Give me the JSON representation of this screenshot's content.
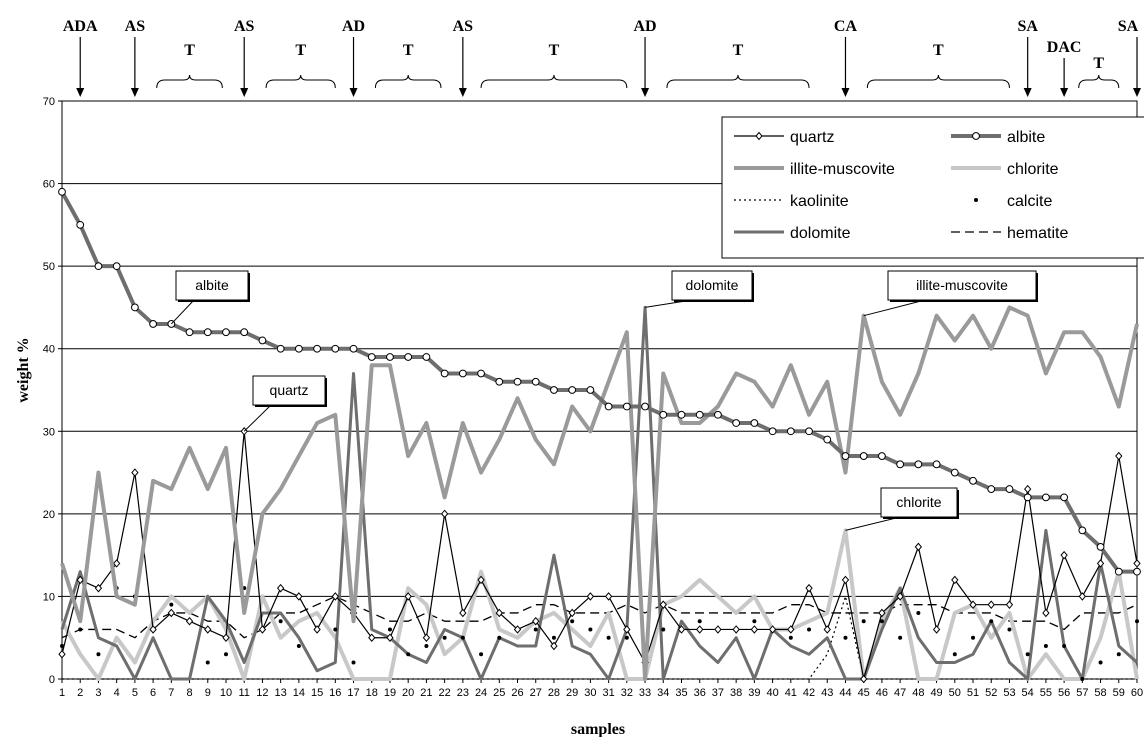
{
  "chart_data": {
    "type": "line",
    "xlabel": "samples",
    "ylabel": "weight %",
    "xlim": [
      1,
      60
    ],
    "ylim": [
      0,
      70
    ],
    "y_ticks": [
      0,
      10,
      20,
      30,
      40,
      50,
      60,
      70
    ],
    "grid": "horizontal",
    "legend_position": "top-right",
    "x": [
      1,
      2,
      3,
      4,
      5,
      6,
      7,
      8,
      9,
      10,
      11,
      12,
      13,
      14,
      15,
      16,
      17,
      18,
      19,
      20,
      21,
      22,
      23,
      24,
      25,
      26,
      27,
      28,
      29,
      30,
      31,
      32,
      33,
      34,
      35,
      36,
      37,
      38,
      39,
      40,
      41,
      42,
      43,
      44,
      45,
      46,
      47,
      48,
      49,
      50,
      51,
      52,
      53,
      54,
      55,
      56,
      57,
      58,
      59,
      60
    ],
    "series": [
      {
        "name": "quartz",
        "color": "#000000",
        "values": [
          3,
          12,
          11,
          14,
          25,
          6,
          8,
          7,
          6,
          5,
          30,
          6,
          11,
          10,
          6,
          10,
          8,
          5,
          5,
          10,
          5,
          20,
          8,
          12,
          8,
          6,
          7,
          4,
          8,
          10,
          10,
          6,
          2,
          9,
          6,
          6,
          6,
          6,
          6,
          6,
          6,
          11,
          6,
          12,
          0,
          8,
          10,
          16,
          6,
          12,
          9,
          9,
          9,
          23,
          8,
          15,
          10,
          14,
          27,
          14
        ]
      },
      {
        "name": "albite",
        "color": "#6e6e6e",
        "values": [
          59,
          55,
          50,
          50,
          45,
          43,
          43,
          42,
          42,
          42,
          42,
          41,
          40,
          40,
          40,
          40,
          40,
          39,
          39,
          39,
          39,
          37,
          37,
          37,
          36,
          36,
          36,
          35,
          35,
          35,
          33,
          33,
          33,
          32,
          32,
          32,
          32,
          31,
          31,
          30,
          30,
          30,
          29,
          27,
          27,
          27,
          26,
          26,
          26,
          25,
          24,
          23,
          23,
          22,
          22,
          22,
          18,
          16,
          13,
          13
        ]
      },
      {
        "name": "illite-muscovite",
        "color": "#9a9a9a",
        "values": [
          14,
          7,
          25,
          10,
          9,
          24,
          23,
          28,
          23,
          28,
          8,
          20,
          23,
          27,
          31,
          32,
          7,
          38,
          38,
          27,
          31,
          22,
          31,
          25,
          29,
          34,
          29,
          26,
          33,
          30,
          36,
          42,
          0,
          37,
          31,
          31,
          33,
          37,
          36,
          33,
          38,
          32,
          36,
          25,
          44,
          36,
          32,
          37,
          44,
          41,
          44,
          40,
          45,
          44,
          37,
          42,
          42,
          39,
          33,
          43
        ]
      },
      {
        "name": "chlorite",
        "color": "#c8c8c8",
        "values": [
          7,
          3,
          0,
          5,
          2,
          7,
          10,
          8,
          10,
          6,
          0,
          10,
          5,
          7,
          8,
          5,
          0,
          0,
          0,
          11,
          9,
          3,
          5,
          13,
          6,
          5,
          7,
          8,
          6,
          4,
          8,
          0,
          0,
          9,
          10,
          12,
          10,
          8,
          10,
          6,
          6,
          7,
          8,
          18,
          0,
          7,
          11,
          0,
          0,
          8,
          9,
          5,
          8,
          0,
          3,
          0,
          0,
          5,
          13,
          0
        ]
      },
      {
        "name": "kaolinite",
        "color": "#000000",
        "values": [
          0,
          0,
          0,
          0,
          0,
          0,
          0,
          0,
          0,
          0,
          0,
          0,
          0,
          0,
          0,
          0,
          0,
          0,
          0,
          0,
          0,
          0,
          0,
          0,
          0,
          0,
          0,
          0,
          0,
          0,
          0,
          0,
          0,
          0,
          0,
          0,
          0,
          0,
          0,
          0,
          0,
          0,
          3,
          10,
          0,
          0,
          0,
          0,
          0,
          0,
          0,
          0,
          0,
          0,
          0,
          0,
          0,
          0,
          0,
          0
        ]
      },
      {
        "name": "calcite",
        "color": "#000000",
        "values": [
          4,
          6,
          3,
          11,
          10,
          6,
          9,
          7,
          2,
          3,
          11,
          6,
          7,
          4,
          6,
          6,
          2,
          5,
          6,
          3,
          4,
          5,
          5,
          3,
          5,
          6,
          6,
          5,
          7,
          6,
          5,
          5,
          4,
          6,
          6,
          7,
          6,
          6,
          7,
          6,
          5,
          6,
          6,
          5,
          7,
          7,
          5,
          8,
          6,
          3,
          5,
          7,
          6,
          3,
          4,
          4,
          0,
          2,
          3,
          7
        ]
      },
      {
        "name": "dolomite",
        "color": "#6e6e6e",
        "values": [
          6,
          13,
          5,
          4,
          0,
          5,
          0,
          0,
          10,
          7,
          2,
          8,
          8,
          5,
          1,
          2,
          37,
          6,
          5,
          3,
          2,
          6,
          5,
          0,
          5,
          4,
          4,
          15,
          4,
          3,
          0,
          6,
          45,
          0,
          7,
          4,
          2,
          5,
          0,
          6,
          4,
          3,
          5,
          0,
          0,
          6,
          11,
          5,
          2,
          2,
          3,
          7,
          2,
          0,
          18,
          4,
          0,
          14,
          4,
          2
        ]
      },
      {
        "name": "hematite",
        "color": "#000000",
        "values": [
          5,
          6,
          6,
          6,
          5,
          7,
          8,
          8,
          7,
          7,
          5,
          6,
          8,
          8,
          9,
          10,
          9,
          8,
          7,
          7,
          8,
          7,
          7,
          7,
          8,
          8,
          9,
          9,
          8,
          8,
          8,
          9,
          8,
          9,
          8,
          8,
          8,
          8,
          8,
          8,
          9,
          9,
          8,
          8,
          8,
          8,
          9,
          9,
          9,
          8,
          8,
          8,
          7,
          7,
          7,
          6,
          8,
          8,
          8,
          9
        ]
      }
    ],
    "top_labels": [
      {
        "text": "ADA",
        "at": 2,
        "arrow": true
      },
      {
        "text": "AS",
        "at": 5,
        "arrow": true
      },
      {
        "text": "T",
        "from": 6.2,
        "to": 9.8,
        "arrow": false
      },
      {
        "text": "AS",
        "at": 11,
        "arrow": true
      },
      {
        "text": "T",
        "from": 12.2,
        "to": 16,
        "arrow": false
      },
      {
        "text": "AD",
        "at": 17,
        "arrow": true
      },
      {
        "text": "T",
        "from": 18.2,
        "to": 21.8,
        "arrow": false
      },
      {
        "text": "AS",
        "at": 23,
        "arrow": true
      },
      {
        "text": "T",
        "from": 24,
        "to": 32,
        "arrow": false
      },
      {
        "text": "AD",
        "at": 33,
        "arrow": true
      },
      {
        "text": "T",
        "from": 34.2,
        "to": 42,
        "arrow": false
      },
      {
        "text": "CA",
        "at": 44,
        "arrow": true
      },
      {
        "text": "T",
        "from": 45.2,
        "to": 53,
        "arrow": false
      },
      {
        "text": "SA",
        "at": 54,
        "arrow": true
      },
      {
        "text": "DAC",
        "at": 56,
        "arrow": true
      },
      {
        "text": "T",
        "from": 56.8,
        "to": 59,
        "arrow": false
      },
      {
        "text": "SA",
        "at": 60,
        "arrow": true
      }
    ],
    "annotations": [
      {
        "text": "albite",
        "points_to": [
          7,
          43
        ]
      },
      {
        "text": "quartz",
        "points_to": [
          11,
          30
        ]
      },
      {
        "text": "dolomite",
        "points_to": [
          33,
          45
        ]
      },
      {
        "text": "illite-muscovite",
        "points_to": [
          45,
          44
        ]
      },
      {
        "text": "chlorite",
        "points_to": [
          44,
          18
        ]
      }
    ]
  }
}
